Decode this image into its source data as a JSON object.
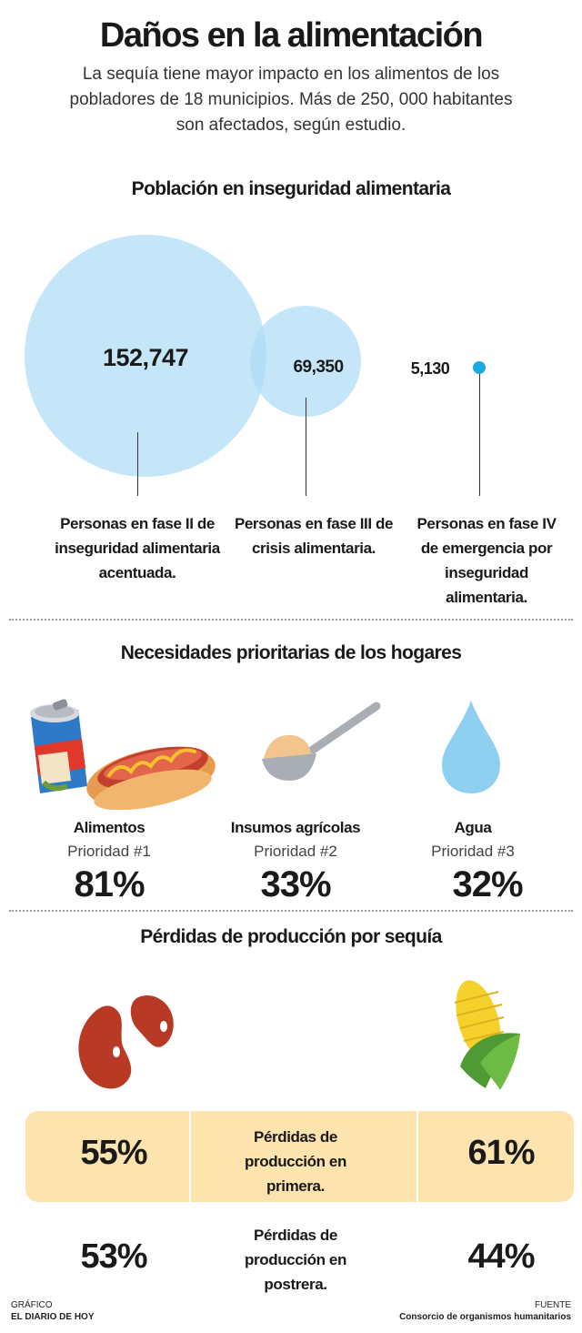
{
  "header": {
    "title": "Daños en la alimentación",
    "subtitle": "La sequía tiene mayor impacto en los alimentos de los pobladores de 18 municipios. Más de 250, 000 habitantes son afectados, según estudio."
  },
  "population": {
    "title": "Población en inseguridad alimentaria",
    "circle_color": "#aedcf5",
    "dot_color": "#1fa8e6",
    "groups": [
      {
        "value": "152,747",
        "label": "Personas en fase II de inseguridad alimentaria acentuada."
      },
      {
        "value": "69,350",
        "label": "Personas en fase III de crisis alimentaria."
      },
      {
        "value": "5,130",
        "label": "Personas en fase IV de emergencia por inseguridad alimentaria."
      }
    ]
  },
  "needs": {
    "title": "Necesidades prioritarias de los hogares",
    "items": [
      {
        "name": "Alimentos",
        "priority": "Prioridad #1",
        "percent": "81%",
        "icon": "soda-and-hotdog-icon"
      },
      {
        "name": "Insumos agrícolas",
        "priority": "Prioridad #2",
        "percent": "33%",
        "icon": "scoop-icon"
      },
      {
        "name": "Agua",
        "priority": "Prioridad #3",
        "percent": "32%",
        "icon": "water-drop-icon"
      }
    ]
  },
  "losses": {
    "title": "Pérdidas de producción por sequía",
    "highlight_color": "#fde3ad",
    "icons": [
      "beans-icon",
      "corn-icon"
    ],
    "rows": [
      {
        "left": "55%",
        "label": "Pérdidas de producción en primera.",
        "right": "61%"
      },
      {
        "left": "53%",
        "label": "Pérdidas de producción en postrera.",
        "right": "44%"
      }
    ]
  },
  "footer": {
    "left_caption": "GRÁFICO",
    "left_name": "EL DIARIO DE HOY",
    "right_caption": "FUENTE",
    "right_name": "Consorcio de organismos humanitarios"
  }
}
